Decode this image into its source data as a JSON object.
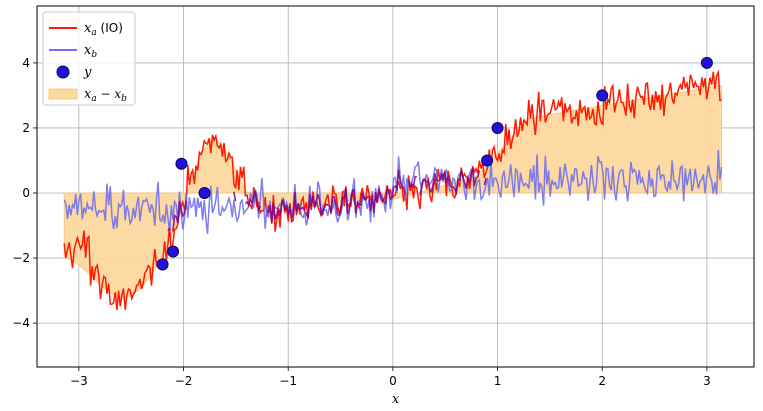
{
  "chart_data": {
    "type": "line",
    "title": "",
    "xlabel": "x",
    "ylabel": "",
    "xlim": [
      -3.4,
      3.45
    ],
    "ylim": [
      -5.35,
      5.75
    ],
    "xticks": [
      -3,
      -2,
      -1,
      0,
      1,
      2,
      3
    ],
    "yticks": [
      -4,
      -2,
      0,
      2,
      4
    ],
    "xtick_labels": [
      "−3",
      "−2",
      "−1",
      "0",
      "1",
      "2",
      "3"
    ],
    "ytick_labels": [
      "−4",
      "−2",
      "0",
      "2",
      "4"
    ],
    "grid": true,
    "legend_position": "upper-left",
    "colors": {
      "xa": "#ff1a00",
      "xb": "#7070ee",
      "overlap": "#800080",
      "y_fill": "#2211dd",
      "y_edge": "#0a0a55",
      "fill": "#fdd9a0",
      "fill_edge": "#f5c070"
    },
    "legend": [
      {
        "key": "xa",
        "main": "x",
        "sub": "a",
        "suffix": " (IO)",
        "kind": "line"
      },
      {
        "key": "xb",
        "main": "x",
        "sub": "b",
        "suffix": "",
        "kind": "line"
      },
      {
        "key": "y",
        "main": "y",
        "sub": "",
        "suffix": "",
        "kind": "marker"
      },
      {
        "key": "fill",
        "main": "x",
        "sub": "a",
        "suffix": " − x",
        "sub2": "b",
        "kind": "patch"
      }
    ],
    "series_x": {
      "start": -3.14,
      "end": 3.14,
      "count": 400
    },
    "observations": [
      {
        "x": -2.2,
        "y": -2.2
      },
      {
        "x": -2.1,
        "y": -1.8
      },
      {
        "x": -2.02,
        "y": 0.9
      },
      {
        "x": -1.8,
        "y": 0.0
      },
      {
        "x": 0.9,
        "y": 1.0
      },
      {
        "x": 1.0,
        "y": 2.0
      },
      {
        "x": 2.0,
        "y": 3.0
      },
      {
        "x": 3.0,
        "y": 4.0
      }
    ]
  }
}
